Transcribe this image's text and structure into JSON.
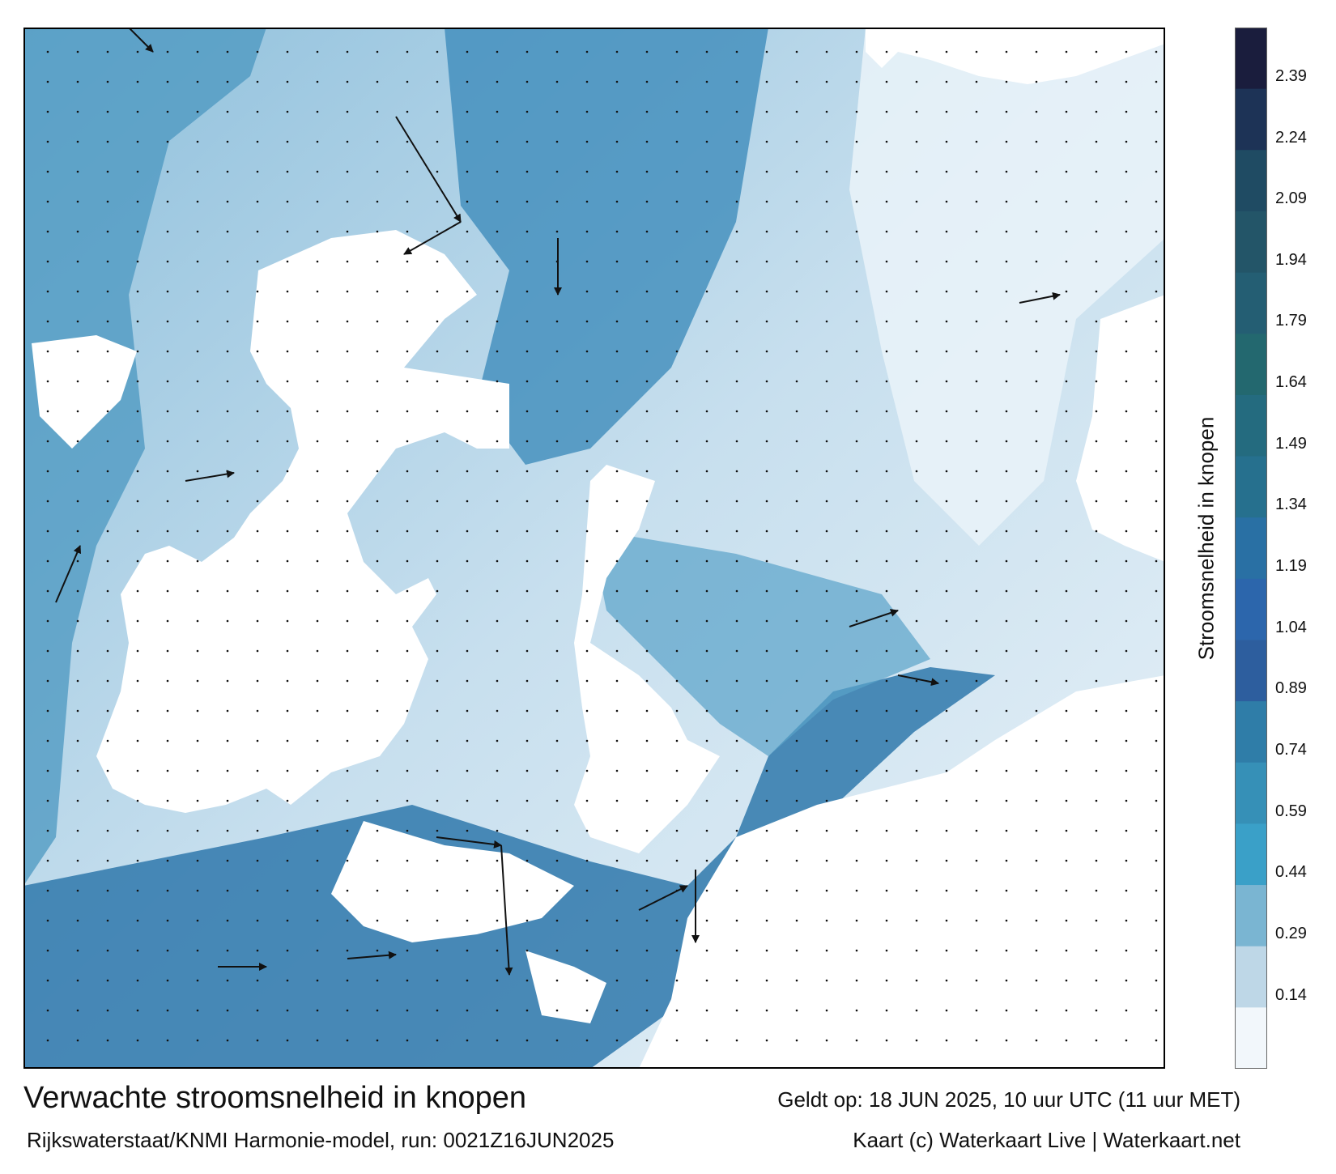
{
  "map": {
    "title": "Verwachte stroomsnelheid in knopen",
    "subtitle": "Rijkswaterstaat/KNMI Harmonie-model, run: 0021Z16JUN2025",
    "valid_time": "Geldt op: 18 JUN 2025, 10 uur UTC (11 uur MET)",
    "credit": "Kaart (c) Waterkaart Live | Waterkaart.net",
    "colors": {
      "land": "#ffffff",
      "water_light": "#e8f1f7",
      "water_mid": "#4f9dc4",
      "water_dark": "#1d5d8e",
      "arrow": "#111111",
      "frame": "#000000"
    }
  },
  "legend": {
    "title": "Stroomsnelheid in knopen",
    "ticks": [
      "2.39",
      "2.24",
      "2.09",
      "1.94",
      "1.79",
      "1.64",
      "1.49",
      "1.34",
      "1.19",
      "1.04",
      "0.89",
      "0.74",
      "0.59",
      "0.44",
      "0.29",
      "0.14"
    ],
    "colors": [
      "#1a1d3d",
      "#1d3356",
      "#1f4b63",
      "#235568",
      "#245e73",
      "#23686f",
      "#246b7f",
      "#26708e",
      "#2970a4",
      "#2c66ac",
      "#2d5e9e",
      "#2f7da8",
      "#3690b7",
      "#3aa0c8",
      "#7ab5d2",
      "#bed7e7",
      "#f2f7fb"
    ]
  }
}
